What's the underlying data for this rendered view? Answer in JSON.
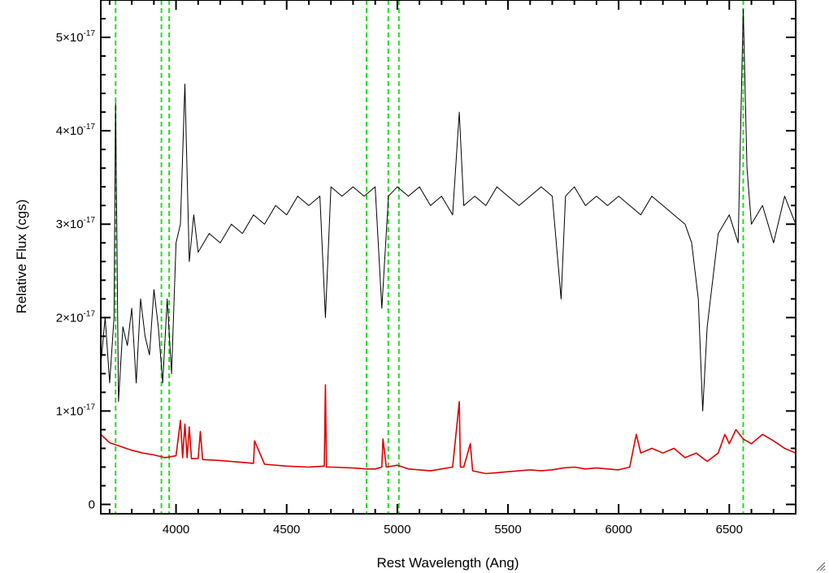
{
  "chart_data": {
    "type": "line",
    "xlabel": "Rest Wavelength (Ang)",
    "ylabel": "Relative Flux (cgs)",
    "xlim": [
      3660,
      6800
    ],
    "ylim": [
      -1e-18,
      5.4e-17
    ],
    "x_ticks": [
      {
        "value": 4000,
        "label": "4000"
      },
      {
        "value": 4500,
        "label": "4500"
      },
      {
        "value": 5000,
        "label": "5000"
      },
      {
        "value": 5500,
        "label": "5500"
      },
      {
        "value": 6000,
        "label": "6000"
      },
      {
        "value": 6500,
        "label": "6500"
      }
    ],
    "y_ticks": [
      {
        "value": 0,
        "mantissa": "0",
        "exponent": ""
      },
      {
        "value": 1e-17,
        "mantissa": "1×10",
        "exponent": "-17"
      },
      {
        "value": 2e-17,
        "mantissa": "2×10",
        "exponent": "-17"
      },
      {
        "value": 3e-17,
        "mantissa": "3×10",
        "exponent": "-17"
      },
      {
        "value": 4e-17,
        "mantissa": "4×10",
        "exponent": "-17"
      },
      {
        "value": 5e-17,
        "mantissa": "5×10",
        "exponent": "-17"
      }
    ],
    "reference_lines": {
      "color": "#22dd22",
      "style": "dashed",
      "x": [
        3727,
        3934,
        3969,
        4861,
        4959,
        5007,
        6563
      ]
    },
    "series": [
      {
        "color": "#000000",
        "x": [
          3660,
          3680,
          3700,
          3720,
          3727,
          3740,
          3760,
          3780,
          3800,
          3820,
          3840,
          3860,
          3880,
          3900,
          3920,
          3940,
          3960,
          3980,
          4000,
          4020,
          4040,
          4060,
          4080,
          4100,
          4150,
          4200,
          4250,
          4300,
          4350,
          4400,
          4450,
          4500,
          4550,
          4600,
          4650,
          4675,
          4700,
          4750,
          4800,
          4850,
          4900,
          4930,
          4960,
          5000,
          5050,
          5100,
          5150,
          5200,
          5250,
          5280,
          5300,
          5350,
          5400,
          5450,
          5500,
          5550,
          5600,
          5650,
          5700,
          5740,
          5760,
          5800,
          5850,
          5900,
          5950,
          6000,
          6050,
          6100,
          6150,
          6200,
          6250,
          6300,
          6330,
          6360,
          6380,
          6400,
          6450,
          6500,
          6540,
          6563,
          6580,
          6600,
          6650,
          6700,
          6750,
          6800
        ],
        "y": [
          1.5e-17,
          2e-17,
          1.3e-17,
          2e-17,
          4.3e-17,
          1.1e-17,
          1.9e-17,
          1.7e-17,
          2.1e-17,
          1.3e-17,
          2.2e-17,
          1.8e-17,
          1.6e-17,
          2.3e-17,
          1.9e-17,
          1.3e-17,
          2.2e-17,
          1.4e-17,
          2.8e-17,
          3e-17,
          4.5e-17,
          2.6e-17,
          3.1e-17,
          2.7e-17,
          2.9e-17,
          2.8e-17,
          3e-17,
          2.9e-17,
          3.1e-17,
          3e-17,
          3.2e-17,
          3.1e-17,
          3.3e-17,
          3.2e-17,
          3.3e-17,
          2e-17,
          3.4e-17,
          3.3e-17,
          3.4e-17,
          3.3e-17,
          3.4e-17,
          2.1e-17,
          3.3e-17,
          3.4e-17,
          3.3e-17,
          3.4e-17,
          3.2e-17,
          3.3e-17,
          3.1e-17,
          4.2e-17,
          3.2e-17,
          3.3e-17,
          3.2e-17,
          3.4e-17,
          3.3e-17,
          3.2e-17,
          3.3e-17,
          3.4e-17,
          3.3e-17,
          2.2e-17,
          3.3e-17,
          3.4e-17,
          3.2e-17,
          3.3e-17,
          3.2e-17,
          3.3e-17,
          3.2e-17,
          3.1e-17,
          3.3e-17,
          3.2e-17,
          3.1e-17,
          3e-17,
          2.8e-17,
          2.2e-17,
          1e-17,
          1.9e-17,
          2.9e-17,
          3.1e-17,
          2.8e-17,
          5.3e-17,
          3.6e-17,
          3e-17,
          3.2e-17,
          2.8e-17,
          3.3e-17,
          3e-17
        ]
      },
      {
        "color": "#dd0000",
        "x": [
          3660,
          3700,
          3750,
          3800,
          3850,
          3900,
          3950,
          4000,
          4020,
          4030,
          4040,
          4050,
          4060,
          4070,
          4100,
          4110,
          4120,
          4200,
          4300,
          4350,
          4355,
          4400,
          4500,
          4600,
          4670,
          4675,
          4680,
          4700,
          4800,
          4861,
          4900,
          4930,
          4935,
          4950,
          5000,
          5050,
          5100,
          5150,
          5200,
          5250,
          5280,
          5285,
          5300,
          5330,
          5340,
          5400,
          5450,
          5500,
          5550,
          5600,
          5650,
          5700,
          5750,
          5800,
          5850,
          5900,
          5950,
          6000,
          6050,
          6080,
          6100,
          6150,
          6200,
          6250,
          6300,
          6350,
          6400,
          6450,
          6480,
          6500,
          6530,
          6563,
          6600,
          6650,
          6700,
          6750,
          6800
        ],
        "y": [
          7.5e-18,
          6.6e-18,
          6.2e-18,
          5.8e-18,
          5.5e-18,
          5.3e-18,
          5e-18,
          5.2e-18,
          9e-18,
          5e-18,
          8.6e-18,
          5e-18,
          8.3e-18,
          4.9e-18,
          4.9e-18,
          7.8e-18,
          4.8e-18,
          4.7e-18,
          4.5e-18,
          4.4e-18,
          6.8e-18,
          4.3e-18,
          4.1e-18,
          4e-18,
          4.1e-18,
          1.28e-17,
          4e-18,
          4e-18,
          3.9e-18,
          3.8e-18,
          3.8e-18,
          4e-18,
          7e-18,
          4e-18,
          4.2e-18,
          3.8e-18,
          3.7e-18,
          3.6e-18,
          3.8e-18,
          4e-18,
          1.1e-17,
          4e-18,
          4e-18,
          6.5e-18,
          3.6e-18,
          3.3e-18,
          3.4e-18,
          3.5e-18,
          3.6e-18,
          3.7e-18,
          3.6e-18,
          3.7e-18,
          3.9e-18,
          4e-18,
          3.8e-18,
          3.9e-18,
          3.8e-18,
          3.7e-18,
          4e-18,
          7.5e-18,
          5.5e-18,
          6e-18,
          5.5e-18,
          6e-18,
          5e-18,
          5.5e-18,
          4.6e-18,
          5.5e-18,
          7.5e-18,
          6.5e-18,
          8e-18,
          7e-18,
          6.5e-18,
          7.5e-18,
          6.8e-18,
          6e-18,
          5.5e-18
        ]
      }
    ]
  }
}
